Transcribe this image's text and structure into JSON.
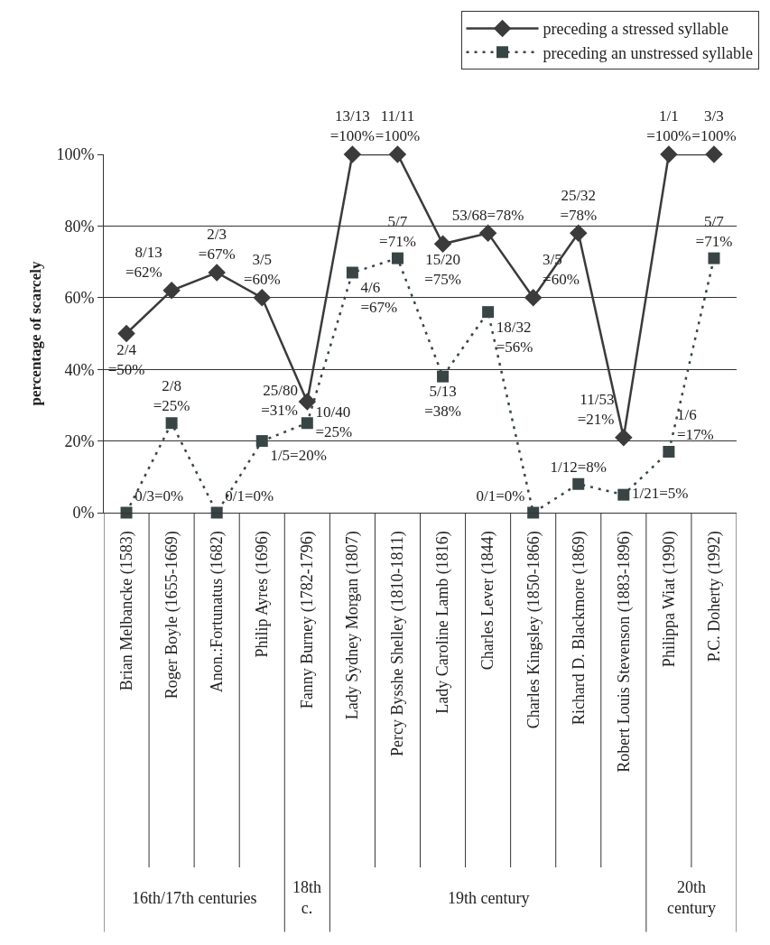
{
  "chart_data": {
    "type": "line",
    "ylabel": "percentage of scarcely",
    "categories": [
      "Brian Melbancke (1583)",
      "Roger Boyle (1655-1669)",
      "Anon.:Fortunatus (1682)",
      "Philip Ayres (1696)",
      "Fanny Burney (1782-1796)",
      "Lady Sydney Morgan (1807)",
      "Percy Bysshe Shelley (1810-1811)",
      "Lady Caroline Lamb (1816)",
      "Charles Lever (1844)",
      "Charles Kingsley (1850-1866)",
      "Richard D. Blackmore (1869)",
      "Robert Louis Stevenson (1883-1896)",
      "Philippa Wiat (1990)",
      "P.C. Doherty (1992)"
    ],
    "series": [
      {
        "name": "preceding a stressed syllable",
        "color": "#3b3b3b",
        "marker": "diamond",
        "line_style": "solid",
        "values": [
          50,
          62,
          67,
          60,
          31,
          100,
          100,
          75,
          78,
          60,
          78,
          21,
          100,
          100
        ],
        "value_labels": [
          "2/4\n=50%",
          "8/13\n=62%",
          "2/3\n=67%",
          "3/5\n=60%",
          "25/80\n=31%",
          "13/13\n=100%",
          "11/11\n=100%",
          "15/20\n=75%",
          "53/68=78%",
          "3/5\n=60%",
          "25/32\n=78%",
          "11/53\n=21%",
          "1/1\n=100%",
          "3/3\n=100%"
        ]
      },
      {
        "name": "preceding an unstressed syllable",
        "color": "#394545",
        "marker": "square",
        "line_style": "dotted",
        "values": [
          0,
          25,
          0,
          20,
          25,
          67,
          71,
          38,
          56,
          0,
          8,
          5,
          17,
          71
        ],
        "value_labels": [
          "0/3=0%",
          "2/8\n=25%",
          "0/1=0%",
          "1/5=20%",
          "10/40\n=25%",
          "4/6\n=67%",
          "5/7\n=71%",
          "5/13\n=38%",
          "18/32\n=56%",
          "0/1=0%",
          "1/12=8%",
          "1/21=5%",
          "1/6\n=17%",
          "5/7\n=71%"
        ]
      }
    ],
    "ylim": [
      0,
      100
    ],
    "yticks": [
      {
        "value": 0,
        "label": "0%"
      },
      {
        "value": 20,
        "label": "20%"
      },
      {
        "value": 40,
        "label": "40%"
      },
      {
        "value": 60,
        "label": "60%"
      },
      {
        "value": 80,
        "label": "80%"
      },
      {
        "value": 100,
        "label": "100%"
      }
    ],
    "grid": "y",
    "legend": "top right",
    "annotations": [
      "16th/17th centuries",
      "18th\nc.",
      "19th century",
      "20th\ncentury"
    ]
  }
}
